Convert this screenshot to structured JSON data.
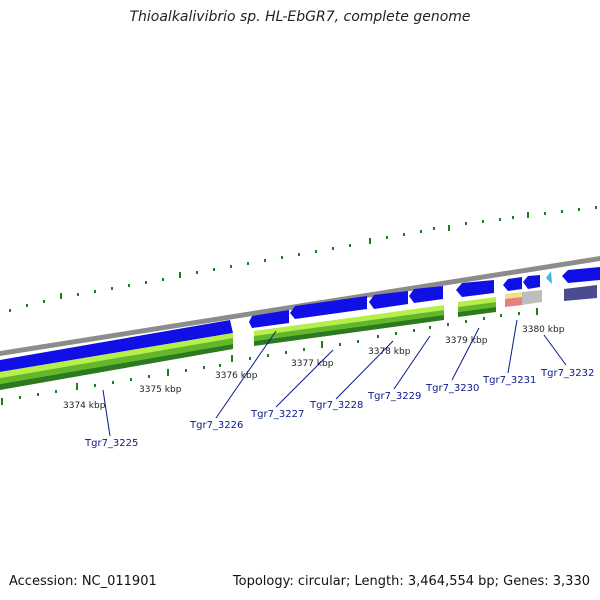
{
  "title": "Thioalkalivibrio sp. HL-EbGR7, complete genome",
  "footer": {
    "accession": "Accession: NC_011901",
    "summary": "Topology: circular; Length: 3,464,554 bp; Genes: 3,330"
  },
  "kbp_labels": [
    "3374 kbp",
    "3375 kbp",
    "3376 kbp",
    "3377 kbp",
    "3378 kbp",
    "3379 kbp",
    "3380 kbp"
  ],
  "genes": [
    "Tgr7_3225",
    "Tgr7_3226",
    "Tgr7_3227",
    "Tgr7_3228",
    "Tgr7_3229",
    "Tgr7_3230",
    "Tgr7_3231",
    "Tgr7_3232"
  ],
  "colors": {
    "backbone": "#8c8c8c",
    "gene_blue": "#1010e6",
    "gene_dark": "#4b4b8f",
    "cyan": "#3fb6e8",
    "light_green": "#b6ee4a",
    "mid_green": "#63b82a",
    "dark_green": "#2b7a1e",
    "tick_green": "#1e7d1e",
    "label_blue": "#0a1a8c"
  }
}
